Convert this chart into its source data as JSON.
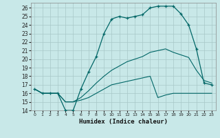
{
  "xlabel": "Humidex (Indice chaleur)",
  "x_ticks": [
    0,
    1,
    2,
    3,
    4,
    5,
    6,
    7,
    8,
    9,
    10,
    11,
    12,
    13,
    14,
    15,
    16,
    17,
    18,
    19,
    20,
    21,
    22,
    23
  ],
  "ylim": [
    14,
    26.6
  ],
  "xlim": [
    -0.5,
    23.5
  ],
  "y_ticks": [
    14,
    15,
    16,
    17,
    18,
    19,
    20,
    21,
    22,
    23,
    24,
    25,
    26
  ],
  "bg_color": "#c8e8e8",
  "grid_color": "#a8c8c8",
  "line_color": "#006666",
  "line1_x": [
    0,
    1,
    2,
    3,
    4,
    5,
    6,
    7,
    8,
    9,
    10,
    11,
    12,
    13,
    14,
    15,
    16,
    17,
    18,
    19,
    20,
    21,
    22,
    23
  ],
  "line1_y": [
    16.5,
    16.0,
    16.0,
    16.0,
    14.0,
    14.0,
    16.5,
    18.5,
    20.3,
    23.0,
    24.7,
    25.0,
    24.8,
    25.0,
    25.2,
    26.0,
    26.2,
    26.2,
    26.2,
    25.3,
    24.0,
    21.2,
    17.2,
    17.0
  ],
  "line2_x": [
    0,
    1,
    2,
    3,
    4,
    5,
    6,
    7,
    8,
    9,
    10,
    11,
    12,
    13,
    14,
    15,
    16,
    17,
    18,
    19,
    20,
    21,
    22,
    23
  ],
  "line2_y": [
    16.5,
    16.0,
    16.0,
    16.0,
    15.0,
    15.0,
    15.2,
    15.5,
    16.0,
    16.5,
    17.0,
    17.2,
    17.4,
    17.6,
    17.8,
    18.0,
    15.5,
    15.8,
    16.0,
    16.0,
    16.0,
    16.0,
    16.0,
    16.0
  ],
  "line3_x": [
    0,
    1,
    2,
    3,
    4,
    5,
    6,
    7,
    8,
    9,
    10,
    11,
    12,
    13,
    14,
    15,
    16,
    17,
    18,
    19,
    20,
    21,
    22,
    23
  ],
  "line3_y": [
    16.5,
    16.0,
    16.0,
    16.0,
    15.0,
    15.0,
    15.5,
    16.3,
    17.2,
    18.0,
    18.7,
    19.2,
    19.7,
    20.0,
    20.3,
    20.8,
    21.0,
    21.2,
    20.8,
    20.5,
    20.2,
    18.7,
    17.5,
    17.2
  ]
}
